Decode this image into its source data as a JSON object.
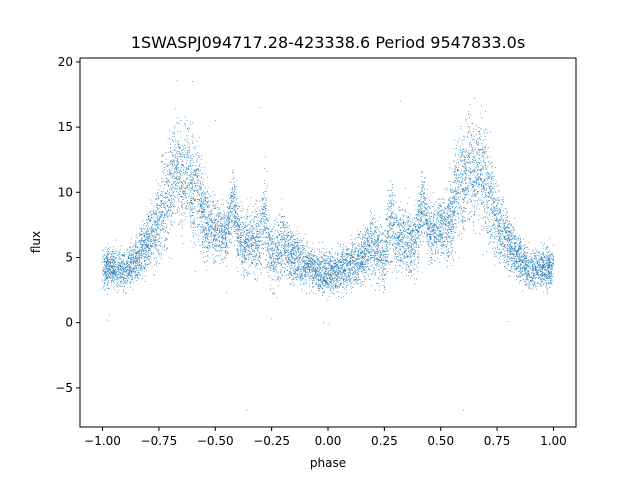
{
  "chart_data": {
    "type": "scatter",
    "title": "1SWASPJ094717.28-423338.6 Period 9547833.0s",
    "xlabel": "phase",
    "ylabel": "flux",
    "xlim": [
      -1.1,
      1.1
    ],
    "ylim": [
      -8,
      20.3
    ],
    "xticks": [
      -1.0,
      -0.75,
      -0.5,
      -0.25,
      0.0,
      0.25,
      0.5,
      0.75,
      1.0
    ],
    "xtick_labels": [
      "−1.00",
      "−0.75",
      "−0.50",
      "−0.25",
      "0.00",
      "0.25",
      "0.50",
      "0.75",
      "1.00"
    ],
    "yticks": [
      -5,
      0,
      5,
      10,
      15,
      20
    ],
    "ytick_labels": [
      "−5",
      "0",
      "5",
      "10",
      "15",
      "20"
    ],
    "grid": false,
    "marker_color": "#1f77b4",
    "series": [
      {
        "name": "",
        "envelope": {
          "phase": [
            -1.0,
            -0.95,
            -0.9,
            -0.85,
            -0.8,
            -0.75,
            -0.72,
            -0.7,
            -0.67,
            -0.65,
            -0.62,
            -0.6,
            -0.57,
            -0.55,
            -0.52,
            -0.5,
            -0.47,
            -0.45,
            -0.42,
            -0.4,
            -0.37,
            -0.35,
            -0.3,
            -0.28,
            -0.25,
            -0.2,
            -0.15,
            -0.1,
            -0.05,
            0.0
          ],
          "center": [
            4.2,
            4.2,
            4.0,
            4.8,
            6.2,
            7.8,
            9.5,
            10.5,
            12.0,
            11.0,
            12.0,
            10.0,
            10.5,
            8.0,
            7.5,
            7.2,
            7.0,
            6.8,
            9.5,
            7.0,
            6.0,
            6.5,
            6.5,
            8.0,
            5.0,
            6.0,
            5.0,
            4.5,
            4.0,
            3.8
          ],
          "spread": [
            1.5,
            1.5,
            1.4,
            1.6,
            2.2,
            3.0,
            4.0,
            4.2,
            3.5,
            3.5,
            3.8,
            4.0,
            3.8,
            3.0,
            2.5,
            2.2,
            2.2,
            2.0,
            2.5,
            2.5,
            2.2,
            2.5,
            2.8,
            3.5,
            2.5,
            2.5,
            2.0,
            1.8,
            1.5,
            1.6
          ]
        },
        "symmetric_about_phase": 0,
        "points_per_half_cycle": 5200,
        "outliers": [
          [
            -0.98,
            0.2
          ],
          [
            -0.97,
            0.6
          ],
          [
            -0.6,
            18.5
          ],
          [
            -0.67,
            18.6
          ],
          [
            -0.45,
            2.3
          ],
          [
            -0.3,
            16.5
          ],
          [
            -0.25,
            0.3
          ],
          [
            -0.02,
            0.0
          ],
          [
            0.0,
            -0.1
          ],
          [
            -0.5,
            15.5
          ],
          [
            -0.36,
            -6.7
          ],
          [
            0.6,
            -6.7
          ],
          [
            0.65,
            17.2
          ],
          [
            0.32,
            17.0
          ],
          [
            0.8,
            0.1
          ]
        ]
      }
    ]
  }
}
